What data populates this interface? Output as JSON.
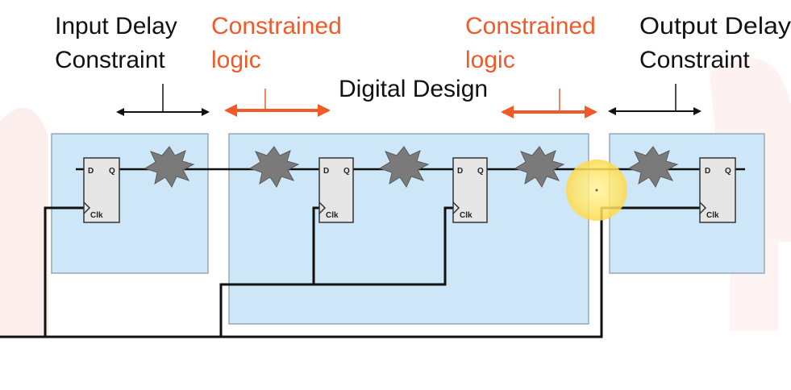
{
  "labels": {
    "input_delay_line1": "Input Delay",
    "input_delay_line2": "Constraint",
    "constrained_left_line1": "Constrained",
    "constrained_left_line2": "logic",
    "digital_design": "Digital Design",
    "constrained_right_line1": "Constrained",
    "constrained_right_line2": "logic",
    "output_delay_line1": "Output Delay",
    "output_delay_line2": "Constraint"
  },
  "flipflop": {
    "d_label": "D",
    "q_label": "Q",
    "clk_label": "Clk"
  },
  "colors": {
    "accent": "#f05a28",
    "box_fill": "#cde7f8",
    "box_stroke": "#9aa8b4",
    "wire": "#111111",
    "logic_blob": "#7a7a7a",
    "cursor_highlight": "#ffe566",
    "watermark": "#fbe7e7"
  },
  "icons": {
    "logic_cloud": "starburst-icon",
    "cursor": "cursor-highlight-icon"
  }
}
